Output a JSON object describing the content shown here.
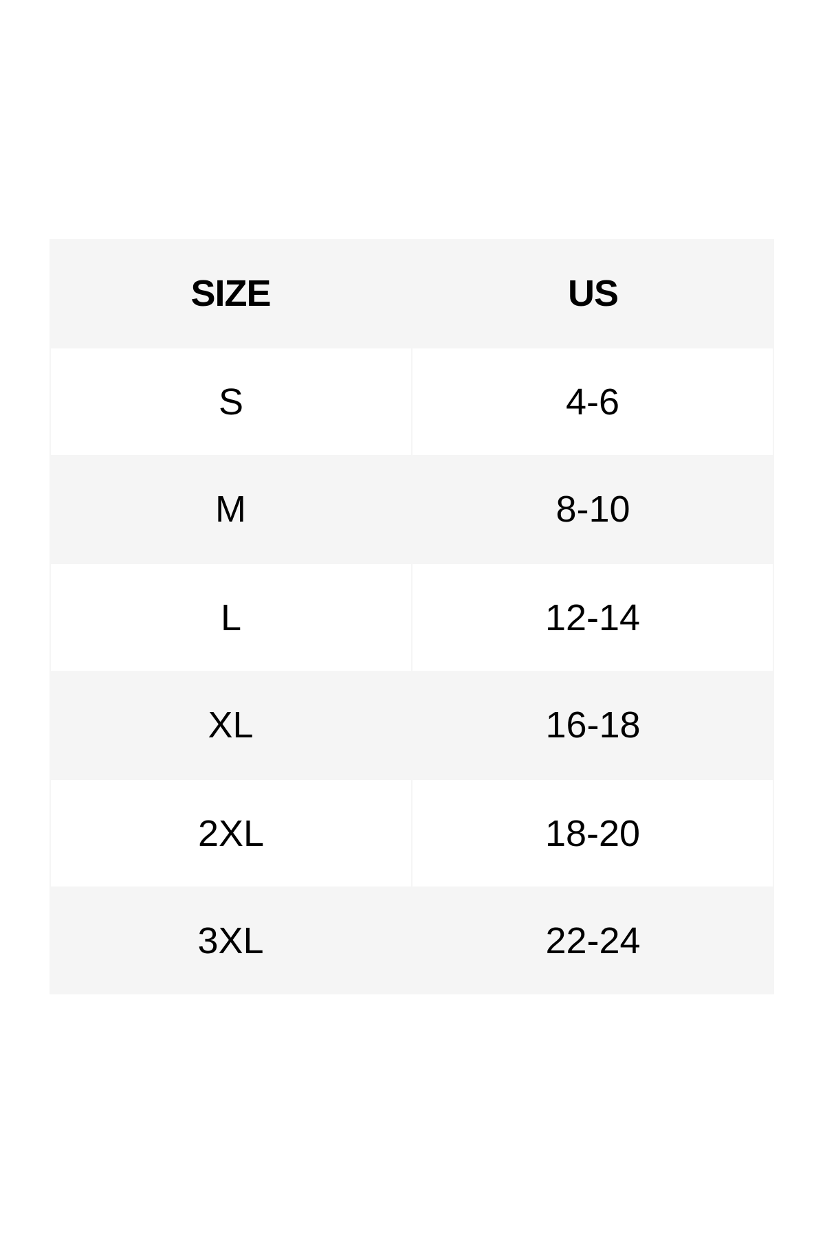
{
  "table": {
    "headers": [
      "SIZE",
      "US"
    ],
    "rows": [
      [
        "S",
        "4-6"
      ],
      [
        "M",
        "8-10"
      ],
      [
        "L",
        "12-14"
      ],
      [
        "XL",
        "16-18"
      ],
      [
        "2XL",
        "18-20"
      ],
      [
        "3XL",
        "22-24"
      ]
    ]
  },
  "colors": {
    "header_bg": "#f5f5f5",
    "alt_row_bg": "#f5f5f5",
    "row_bg": "#ffffff"
  }
}
